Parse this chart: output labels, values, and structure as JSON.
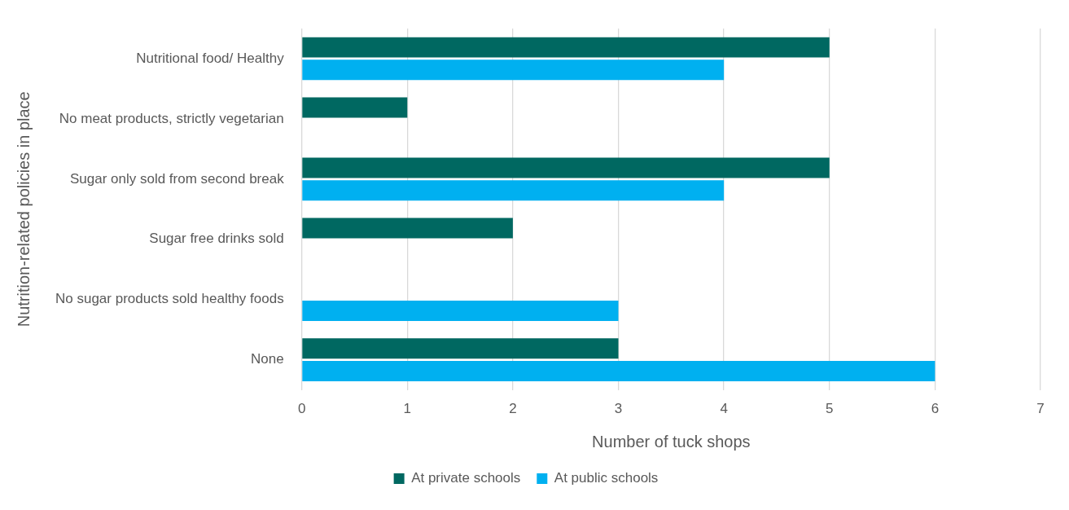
{
  "chart_data": {
    "type": "bar",
    "orientation": "horizontal",
    "xlabel": "Number of tuck shops",
    "ylabel": "Nutrition-related policies in place",
    "categories": [
      "Nutritional food/ Healthy",
      "No meat products, strictly vegetarian",
      "Sugar only sold from second break",
      "Sugar free drinks sold",
      "No sugar products sold healthy foods",
      "None"
    ],
    "series": [
      {
        "name": "At private schools",
        "color": "#006861",
        "values": [
          5,
          1,
          5,
          2,
          null,
          3
        ]
      },
      {
        "name": "At public schools",
        "color": "#00b0f0",
        "values": [
          4,
          null,
          4,
          null,
          3,
          6
        ]
      }
    ],
    "xlim": [
      0,
      7
    ],
    "xticks": [
      0,
      1,
      2,
      3,
      4,
      5,
      6,
      7
    ],
    "grid": "x",
    "legend": "bottom"
  }
}
